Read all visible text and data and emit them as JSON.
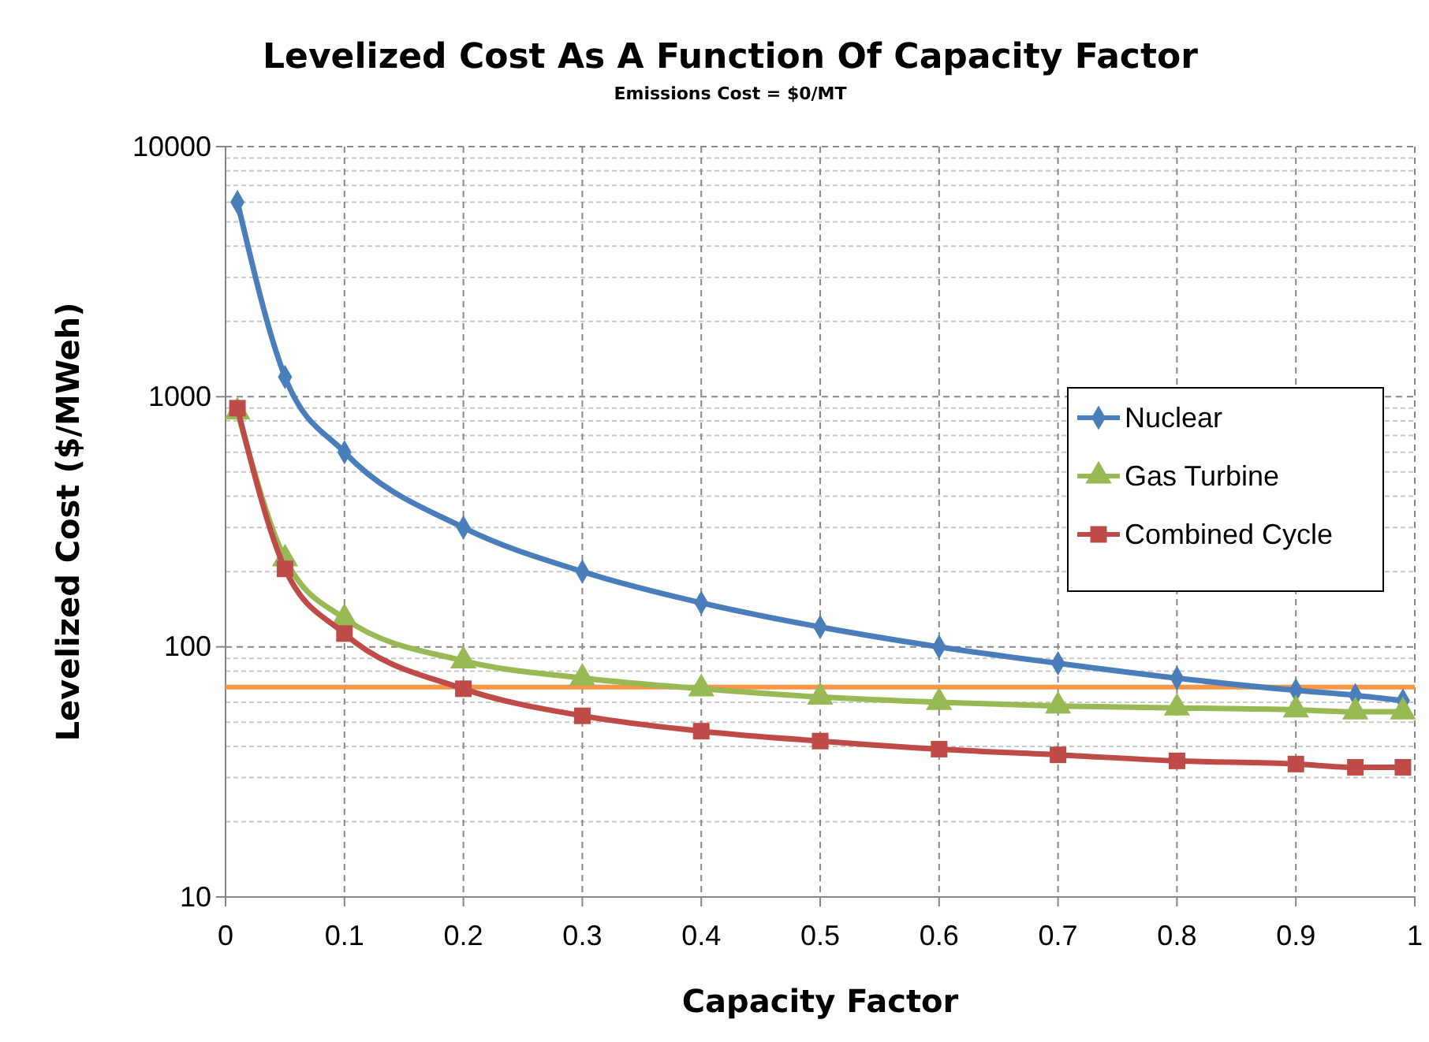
{
  "chart_data": {
    "type": "line",
    "title": "Levelized Cost As A Function Of Capacity Factor",
    "subtitle": "Emissions Cost = $0/MT",
    "xlabel": "Capacity Factor",
    "ylabel": "Levelized Cost ($/MWeh)",
    "x": [
      0.01,
      0.05,
      0.1,
      0.2,
      0.3,
      0.4,
      0.5,
      0.6,
      0.7,
      0.8,
      0.9,
      0.95,
      0.99
    ],
    "series": [
      {
        "name": "Nuclear",
        "color": "#4a7ebb",
        "marker": "diamond",
        "values": [
          6000,
          1200,
          600,
          300,
          200,
          150,
          120,
          100,
          86,
          75,
          67,
          64,
          61
        ]
      },
      {
        "name": "Gas Turbine",
        "color": "#98b954",
        "marker": "triangle",
        "values": [
          870,
          225,
          130,
          88,
          75,
          68,
          63,
          60,
          58,
          57,
          56,
          55,
          55
        ]
      },
      {
        "name": "Combined Cycle",
        "color": "#be4b48",
        "marker": "square",
        "values": [
          900,
          205,
          113,
          68,
          53,
          46,
          42,
          39,
          37,
          35,
          34,
          33,
          33
        ]
      }
    ],
    "xlim": [
      0,
      1
    ],
    "xticks": [
      0,
      0.1,
      0.2,
      0.3,
      0.4,
      0.5,
      0.6,
      0.7,
      0.8,
      0.9,
      1
    ],
    "ylim": [
      10,
      10000
    ],
    "yticks": [
      10,
      100,
      1000,
      10000
    ],
    "log": true,
    "grid": true,
    "legend": "right",
    "ref_lines": [
      {
        "axis": "y",
        "value": 69,
        "color": "#f79646"
      }
    ]
  }
}
